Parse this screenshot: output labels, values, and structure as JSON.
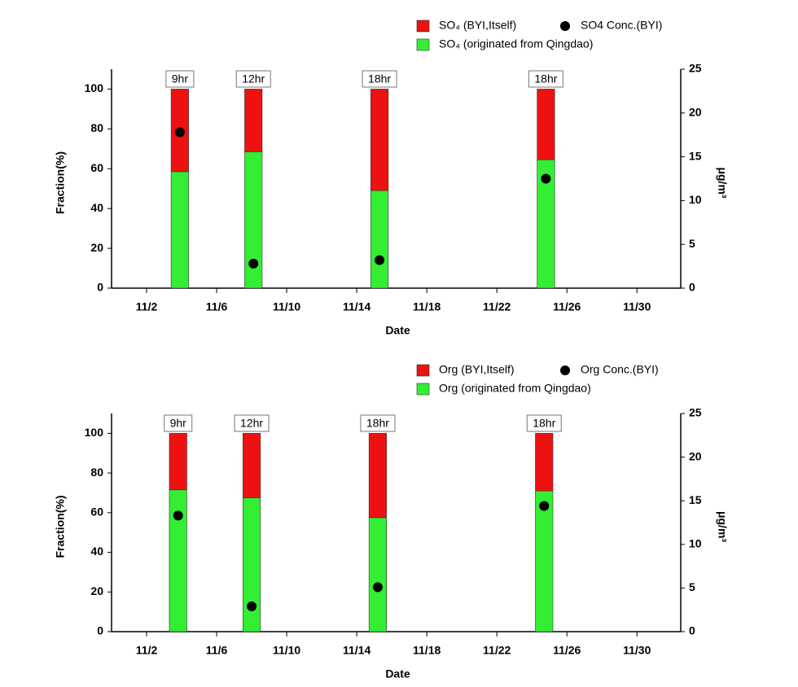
{
  "chart_data": [
    {
      "type": "bar",
      "stacked": true,
      "x": [
        3.9,
        8.1,
        15.3,
        24.8
      ],
      "annotations": [
        "9hr",
        "12hr",
        "18hr",
        "18hr"
      ],
      "series": [
        {
          "name": "SO₄ (originated from Qingdao)",
          "color": "#33ee33",
          "values": [
            58.5,
            68.5,
            49,
            64.5
          ]
        },
        {
          "name": "SO₄ (BYI,Itself)",
          "color": "#ee1111",
          "values": [
            41.5,
            31.5,
            51,
            35.5
          ]
        },
        {
          "name": "SO4 Conc.(BYI)",
          "type": "scatter",
          "axis": "y2",
          "color": "#000000",
          "values": [
            17.8,
            2.8,
            3.2,
            12.5
          ]
        }
      ],
      "xlabel": "Date",
      "ylabel": "Fraction(%)",
      "y2label": "μg/m³",
      "xlim": [
        0,
        32.5
      ],
      "xticks": [
        {
          "value": 2,
          "label": "11/2"
        },
        {
          "value": 6,
          "label": "11/6"
        },
        {
          "value": 10,
          "label": "11/10"
        },
        {
          "value": 14,
          "label": "11/14"
        },
        {
          "value": 18,
          "label": "11/18"
        },
        {
          "value": 22,
          "label": "11/22"
        },
        {
          "value": 26,
          "label": "11/26"
        },
        {
          "value": 30,
          "label": "11/30"
        }
      ],
      "ylim": [
        0,
        110
      ],
      "yticks": [
        0,
        20,
        40,
        60,
        80,
        100
      ],
      "y2lim": [
        0,
        25
      ],
      "y2ticks": [
        0,
        5,
        10,
        15,
        20,
        25
      ]
    },
    {
      "type": "bar",
      "stacked": true,
      "x": [
        3.8,
        8.0,
        15.2,
        24.7
      ],
      "annotations": [
        "9hr",
        "12hr",
        "18hr",
        "18hr"
      ],
      "series": [
        {
          "name": "Org (originated from Qingdao)",
          "color": "#33ee33",
          "values": [
            71.5,
            67.5,
            57.5,
            71
          ]
        },
        {
          "name": "Org (BYI,Itself)",
          "color": "#ee1111",
          "values": [
            28.5,
            32.5,
            42.5,
            29
          ]
        },
        {
          "name": "Org Conc.(BYI)",
          "type": "scatter",
          "axis": "y2",
          "color": "#000000",
          "values": [
            13.3,
            2.9,
            5.1,
            14.4
          ]
        }
      ],
      "xlabel": "Date",
      "ylabel": "Fraction(%)",
      "y2label": "μg/m³",
      "xlim": [
        0,
        32.5
      ],
      "xticks": [
        {
          "value": 2,
          "label": "11/2"
        },
        {
          "value": 6,
          "label": "11/6"
        },
        {
          "value": 10,
          "label": "11/10"
        },
        {
          "value": 14,
          "label": "11/14"
        },
        {
          "value": 18,
          "label": "11/18"
        },
        {
          "value": 22,
          "label": "11/22"
        },
        {
          "value": 26,
          "label": "11/26"
        },
        {
          "value": 30,
          "label": "11/30"
        }
      ],
      "ylim": [
        0,
        110
      ],
      "yticks": [
        0,
        20,
        40,
        60,
        80,
        100
      ],
      "y2lim": [
        0,
        25
      ],
      "y2ticks": [
        0,
        5,
        10,
        15,
        20,
        25
      ]
    }
  ]
}
